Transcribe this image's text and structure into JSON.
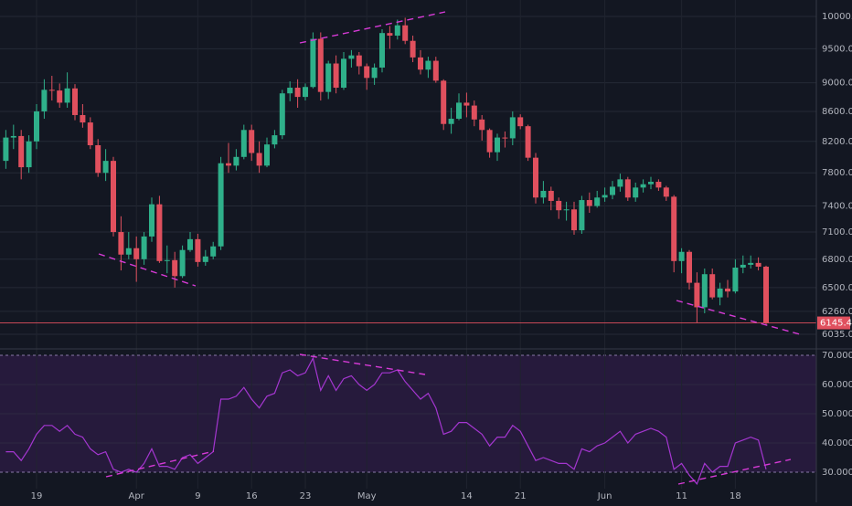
{
  "chart_data": [
    {
      "type": "candlestick",
      "log_scale": true,
      "grid": true,
      "up_color": "#2fb08a",
      "down_color": "#e0505e",
      "ylim": [
        5914,
        10265
      ],
      "yticks": [
        {
          "value": 10000,
          "label": "10000.0"
        },
        {
          "value": 9500,
          "label": "9500.0"
        },
        {
          "value": 9000,
          "label": "9000.0"
        },
        {
          "value": 8600,
          "label": "8600.0"
        },
        {
          "value": 8200,
          "label": "8200.0"
        },
        {
          "value": 7800,
          "label": "7800.0"
        },
        {
          "value": 7400,
          "label": "7400.0"
        },
        {
          "value": 7100,
          "label": "7100.0"
        },
        {
          "value": 6800,
          "label": "6800.0"
        },
        {
          "value": 6500,
          "label": "6500.0"
        },
        {
          "value": 6260,
          "label": "6260.0"
        },
        {
          "value": 6035,
          "label": "6035.0"
        }
      ],
      "last_price": 6145.4,
      "open": [
        7950,
        8250,
        8270,
        7870,
        8200,
        8600,
        8900,
        8890,
        8720,
        8920,
        8550,
        8450,
        8150,
        7800,
        7950,
        7100,
        6850,
        6920,
        6800,
        7050,
        7420,
        6780,
        6790,
        6620,
        6900,
        7020,
        6770,
        6830,
        6940,
        7920,
        7890,
        8000,
        8350,
        8050,
        7890,
        8160,
        8280,
        8850,
        8930,
        8800,
        8940,
        9650,
        8870,
        9280,
        8930,
        9350,
        9400,
        9240,
        9070,
        9220,
        9740,
        9700,
        9860,
        9620,
        9370,
        9190,
        9320,
        9030,
        8430,
        8500,
        8720,
        8680,
        8490,
        8350,
        8060,
        8250,
        8240,
        8520,
        8400,
        7990,
        7500,
        7580,
        7460,
        7350,
        7360,
        7120,
        7470,
        7400,
        7500,
        7530,
        7630,
        7720,
        7500,
        7620,
        7660,
        7690,
        7620,
        7510,
        6780,
        6880,
        6550,
        6300,
        6640,
        6400,
        6490,
        6460,
        6710,
        6740,
        6760,
        6720
      ],
      "high": [
        8350,
        8420,
        8350,
        8280,
        8700,
        9050,
        9100,
        8990,
        9150,
        8980,
        8700,
        8520,
        8230,
        8100,
        8000,
        7280,
        7100,
        7050,
        7100,
        7500,
        7520,
        6950,
        6880,
        6950,
        7100,
        7080,
        6900,
        6990,
        8000,
        8180,
        8100,
        8420,
        8420,
        8200,
        8250,
        8350,
        8900,
        9020,
        9050,
        8990,
        9750,
        9750,
        9320,
        9400,
        9450,
        9480,
        9450,
        9280,
        9280,
        9800,
        9850,
        9950,
        9980,
        9700,
        9480,
        9380,
        9380,
        9050,
        8650,
        8850,
        8860,
        8750,
        8550,
        8370,
        8300,
        8330,
        8600,
        8560,
        8420,
        8050,
        7700,
        7630,
        7500,
        7450,
        7450,
        7520,
        7560,
        7580,
        7620,
        7700,
        7790,
        7750,
        7680,
        7720,
        7750,
        7720,
        7640,
        7530,
        6920,
        6900,
        6660,
        6700,
        6700,
        6550,
        6580,
        6800,
        6840,
        6840,
        6820,
        6730
      ],
      "low": [
        7850,
        8100,
        7720,
        7800,
        8100,
        8500,
        8750,
        8650,
        8650,
        8480,
        8380,
        8100,
        7750,
        7700,
        7050,
        6680,
        6800,
        6560,
        6740,
        6990,
        6760,
        6650,
        6500,
        6600,
        6880,
        6720,
        6730,
        6800,
        6900,
        7800,
        7830,
        7970,
        7950,
        7800,
        7870,
        8110,
        8230,
        8740,
        8650,
        8750,
        8920,
        8750,
        8770,
        8850,
        8900,
        9220,
        9120,
        8900,
        8970,
        9150,
        9500,
        9640,
        9570,
        9300,
        9120,
        9070,
        9000,
        8350,
        8300,
        8480,
        8520,
        8400,
        8210,
        7990,
        7950,
        8120,
        8150,
        8360,
        7950,
        7430,
        7430,
        7350,
        7250,
        7230,
        7070,
        7080,
        7320,
        7380,
        7450,
        7480,
        7570,
        7460,
        7450,
        7560,
        7600,
        7580,
        7460,
        6660,
        6650,
        6480,
        6150,
        6240,
        6380,
        6320,
        6400,
        6440,
        6650,
        6700,
        6680,
        6120
      ],
      "close": [
        8250,
        8270,
        7870,
        8200,
        8600,
        8900,
        8890,
        8720,
        8920,
        8550,
        8450,
        8150,
        7800,
        7950,
        7100,
        6850,
        6920,
        6800,
        7050,
        7420,
        6780,
        6790,
        6620,
        6900,
        7020,
        6770,
        6830,
        6940,
        7920,
        7890,
        8000,
        8350,
        8050,
        7890,
        8160,
        8280,
        8850,
        8930,
        8800,
        8940,
        9650,
        8870,
        9280,
        8930,
        9350,
        9400,
        9240,
        9070,
        9220,
        9740,
        9700,
        9860,
        9620,
        9370,
        9190,
        9320,
        9030,
        8430,
        8500,
        8720,
        8680,
        8490,
        8350,
        8060,
        8250,
        8240,
        8520,
        8400,
        7990,
        7500,
        7580,
        7460,
        7350,
        7360,
        7120,
        7470,
        7400,
        7500,
        7530,
        7630,
        7720,
        7500,
        7620,
        7660,
        7690,
        7620,
        7510,
        6780,
        6880,
        6550,
        6300,
        6640,
        6400,
        6490,
        6460,
        6710,
        6740,
        6760,
        6720,
        6145.4
      ]
    },
    {
      "type": "line",
      "color": "#a436d0",
      "grid": true,
      "ylim": [
        19.7,
        71.25
      ],
      "yticks": [
        {
          "value": 70,
          "label": "70.0000"
        },
        {
          "value": 60,
          "label": "60.0000"
        },
        {
          "value": 50,
          "label": "50.0000"
        },
        {
          "value": 40,
          "label": "40.0000"
        },
        {
          "value": 30,
          "label": "30.0000"
        }
      ],
      "categories": [
        null,
        null,
        null,
        null,
        "19",
        null,
        null,
        null,
        null,
        null,
        null,
        null,
        null,
        null,
        null,
        null,
        null,
        "Apr",
        null,
        null,
        null,
        null,
        null,
        null,
        null,
        "9",
        null,
        null,
        null,
        null,
        null,
        null,
        "16",
        null,
        null,
        null,
        null,
        null,
        null,
        "23",
        null,
        null,
        null,
        null,
        null,
        null,
        null,
        "May",
        null,
        null,
        null,
        null,
        null,
        null,
        null,
        null,
        null,
        null,
        null,
        null,
        "14",
        null,
        null,
        null,
        null,
        null,
        null,
        "21",
        null,
        null,
        null,
        null,
        null,
        null,
        null,
        null,
        null,
        null,
        "Jun",
        null,
        null,
        null,
        null,
        null,
        null,
        null,
        null,
        null,
        "11",
        null,
        null,
        null,
        null,
        null,
        null,
        "18",
        null,
        null,
        null,
        null
      ],
      "values": [
        37,
        37,
        34,
        38,
        43,
        46,
        46,
        44,
        46,
        43,
        42,
        38,
        36,
        37,
        31,
        30,
        31,
        30,
        33,
        38,
        32,
        32,
        31,
        35,
        36,
        33,
        35,
        37,
        55,
        55,
        56,
        59,
        55,
        52,
        56,
        57,
        64,
        65,
        63,
        64,
        69,
        58,
        63,
        58,
        62,
        63,
        60,
        58,
        60,
        64,
        64,
        65,
        61,
        58,
        55,
        57,
        52,
        43,
        44,
        47,
        47,
        45,
        43,
        39,
        42,
        42,
        46,
        44,
        39,
        34,
        35,
        34,
        33,
        33,
        31,
        38,
        37,
        39,
        40,
        42,
        44,
        40,
        43,
        44,
        45,
        44,
        42,
        31,
        33,
        29,
        26,
        33,
        30,
        32,
        32,
        40,
        41,
        42,
        41,
        31
      ]
    }
  ]
}
